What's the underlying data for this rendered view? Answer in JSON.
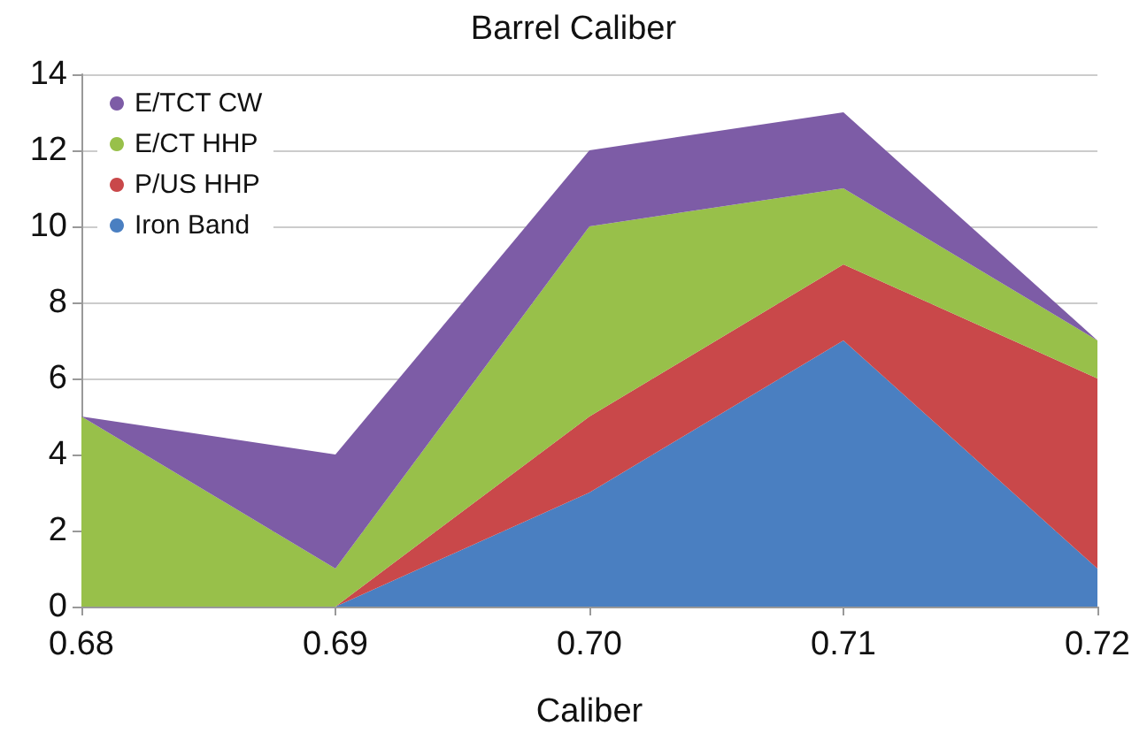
{
  "chart_data": {
    "type": "area",
    "title": "Barrel Caliber",
    "xlabel": "Caliber",
    "categories": [
      "0.68",
      "0.69",
      "0.70",
      "0.71",
      "0.72"
    ],
    "stacked": true,
    "ylim": [
      0,
      14
    ],
    "yticks": [
      0,
      2,
      4,
      6,
      8,
      10,
      12,
      14
    ],
    "grid": "y",
    "legend": "top left",
    "series": [
      {
        "name": "Iron Band",
        "color": "#4a7fc1",
        "values": [
          0,
          0,
          3,
          7,
          1
        ]
      },
      {
        "name": "P/US HHP",
        "color": "#c9484a",
        "values": [
          0,
          0,
          2,
          2,
          5
        ]
      },
      {
        "name": "E/CT HHP",
        "color": "#98c04a",
        "values": [
          5,
          1,
          5,
          2,
          1
        ]
      },
      {
        "name": "E/TCT CW",
        "color": "#7d5ca6",
        "values": [
          0,
          3,
          2,
          2,
          0
        ]
      }
    ]
  }
}
